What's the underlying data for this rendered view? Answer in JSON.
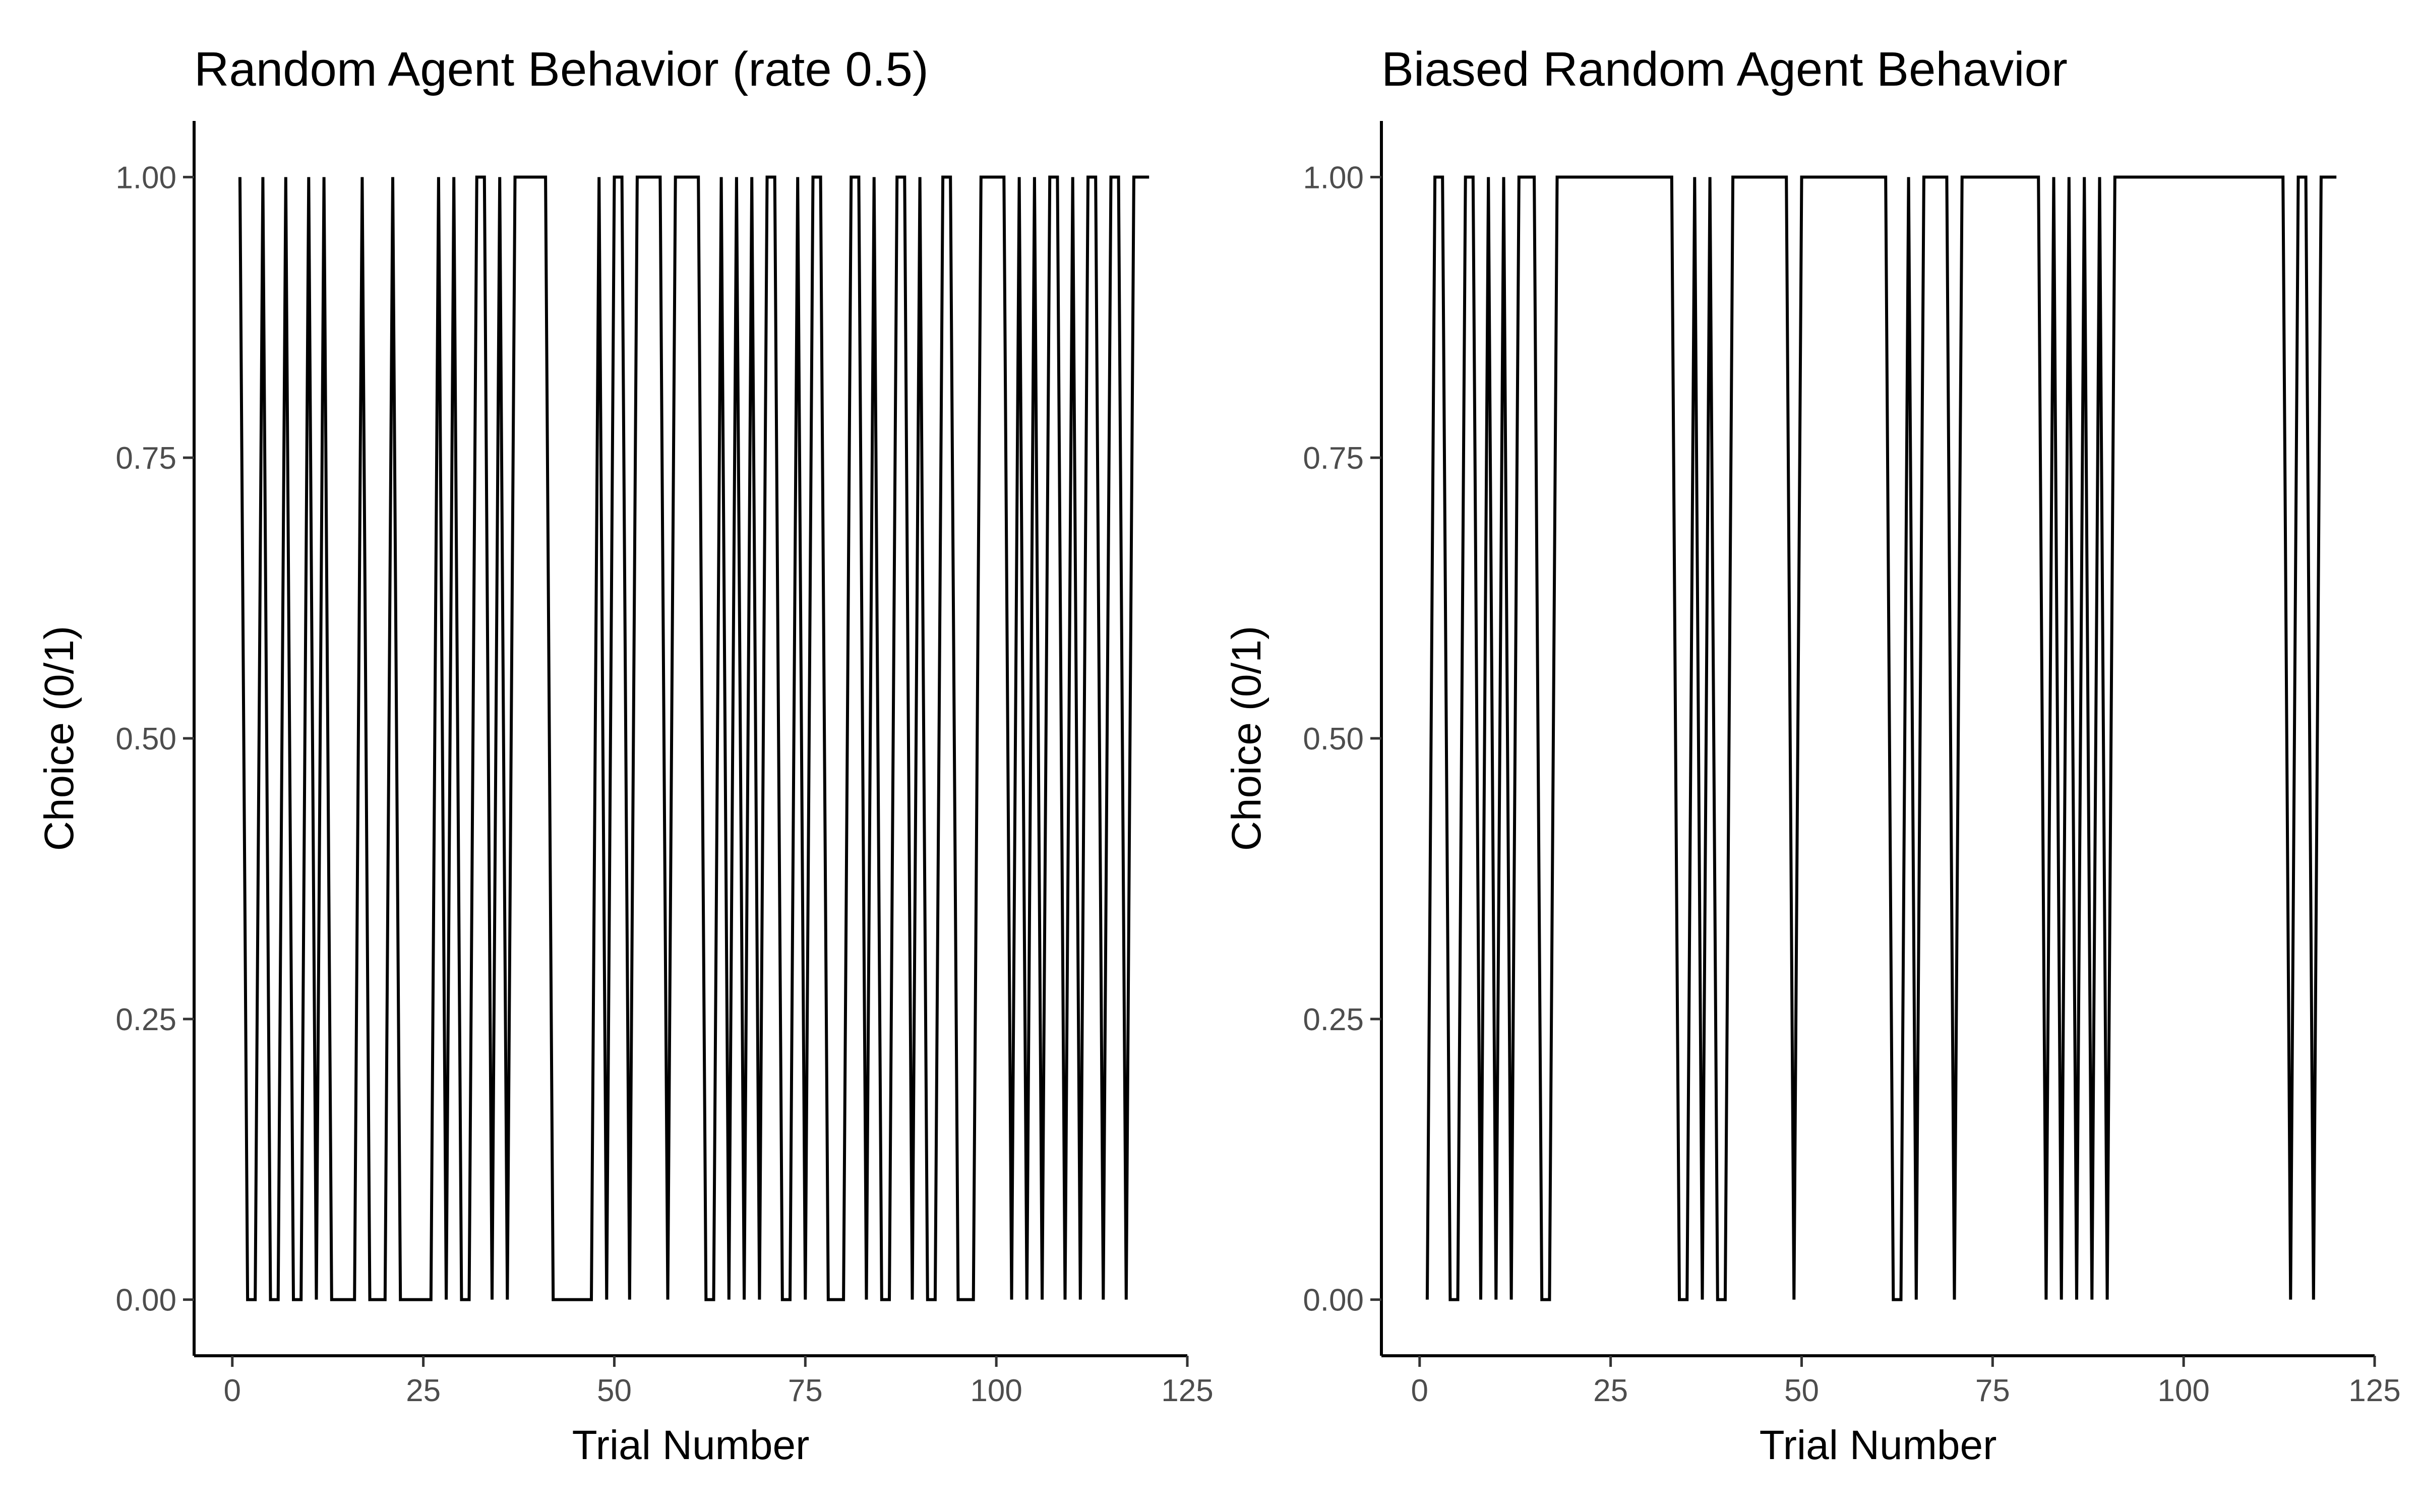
{
  "chart_data": [
    {
      "type": "line",
      "title": "Random Agent Behavior (rate 0.5)",
      "xlabel": "Trial Number",
      "ylabel": "Choice (0/1)",
      "xlim": [
        -5,
        125
      ],
      "ylim": [
        -0.05,
        1.05
      ],
      "xticks": [
        0,
        25,
        50,
        75,
        100,
        125
      ],
      "yticks": [
        0,
        0.25,
        0.5,
        0.75,
        1
      ],
      "xtick_labels": [
        "0",
        "25",
        "50",
        "75",
        "100",
        "125"
      ],
      "ytick_labels": [
        "0.00",
        "0.25",
        "0.50",
        "0.75",
        "1.00"
      ],
      "grid": false,
      "series": [
        {
          "x": [
            1,
            2,
            3,
            4,
            5,
            6,
            7,
            8,
            9,
            10,
            11,
            12,
            13,
            14,
            15,
            16,
            17,
            18,
            19,
            20,
            21,
            22,
            23,
            24,
            25,
            26,
            27,
            28,
            29,
            30,
            31,
            32,
            33,
            34,
            35,
            36,
            37,
            38,
            39,
            40,
            41,
            42,
            43,
            44,
            45,
            46,
            47,
            48,
            49,
            50,
            51,
            52,
            53,
            54,
            55,
            56,
            57,
            58,
            59,
            60,
            61,
            62,
            63,
            64,
            65,
            66,
            67,
            68,
            69,
            70,
            71,
            72,
            73,
            74,
            75,
            76,
            77,
            78,
            79,
            80,
            81,
            82,
            83,
            84,
            85,
            86,
            87,
            88,
            89,
            90,
            91,
            92,
            93,
            94,
            95,
            96,
            97,
            98,
            99,
            100,
            101,
            102,
            103,
            104,
            105,
            106,
            107,
            108,
            109,
            110,
            111,
            112,
            113,
            114,
            115,
            116,
            117,
            118,
            119,
            120
          ],
          "y": [
            1,
            0,
            0,
            1,
            0,
            0,
            1,
            0,
            0,
            1,
            0,
            1,
            0,
            0,
            0,
            0,
            1,
            0,
            0,
            0,
            1,
            0,
            0,
            0,
            0,
            0,
            1,
            0,
            1,
            0,
            0,
            1,
            1,
            0,
            1,
            0,
            1,
            1,
            1,
            1,
            1,
            0,
            0,
            0,
            0,
            0,
            0,
            1,
            0,
            1,
            1,
            0,
            1,
            1,
            1,
            1,
            0,
            1,
            1,
            1,
            1,
            0,
            0,
            1,
            0,
            1,
            0,
            1,
            0,
            1,
            1,
            0,
            0,
            1,
            0,
            1,
            1,
            0,
            0,
            0,
            1,
            1,
            0,
            1,
            0,
            0,
            1,
            1,
            0,
            1,
            0,
            0,
            1,
            1,
            0,
            0,
            0,
            1,
            1,
            1,
            1,
            0,
            1,
            0,
            1,
            0,
            1,
            1,
            0,
            1,
            0,
            1,
            1,
            0,
            1,
            1,
            0,
            1,
            1,
            1
          ]
        }
      ]
    },
    {
      "type": "line",
      "title": "Biased Random Agent Behavior",
      "xlabel": "Trial Number",
      "ylabel": "Choice (0/1)",
      "xlim": [
        -5,
        125
      ],
      "ylim": [
        -0.05,
        1.05
      ],
      "xticks": [
        0,
        25,
        50,
        75,
        100,
        125
      ],
      "yticks": [
        0,
        0.25,
        0.5,
        0.75,
        1
      ],
      "xtick_labels": [
        "0",
        "25",
        "50",
        "75",
        "100",
        "125"
      ],
      "ytick_labels": [
        "0.00",
        "0.25",
        "0.50",
        "0.75",
        "1.00"
      ],
      "grid": false,
      "series": [
        {
          "x": [
            1,
            2,
            3,
            4,
            5,
            6,
            7,
            8,
            9,
            10,
            11,
            12,
            13,
            14,
            15,
            16,
            17,
            18,
            19,
            20,
            21,
            22,
            23,
            24,
            25,
            26,
            27,
            28,
            29,
            30,
            31,
            32,
            33,
            34,
            35,
            36,
            37,
            38,
            39,
            40,
            41,
            42,
            43,
            44,
            45,
            46,
            47,
            48,
            49,
            50,
            51,
            52,
            53,
            54,
            55,
            56,
            57,
            58,
            59,
            60,
            61,
            62,
            63,
            64,
            65,
            66,
            67,
            68,
            69,
            70,
            71,
            72,
            73,
            74,
            75,
            76,
            77,
            78,
            79,
            80,
            81,
            82,
            83,
            84,
            85,
            86,
            87,
            88,
            89,
            90,
            91,
            92,
            93,
            94,
            95,
            96,
            97,
            98,
            99,
            100,
            101,
            102,
            103,
            104,
            105,
            106,
            107,
            108,
            109,
            110,
            111,
            112,
            113,
            114,
            115,
            116,
            117,
            118,
            119,
            120
          ],
          "y": [
            0,
            1,
            1,
            0,
            0,
            1,
            1,
            0,
            1,
            0,
            1,
            0,
            1,
            1,
            1,
            0,
            0,
            1,
            1,
            1,
            1,
            1,
            1,
            1,
            1,
            1,
            1,
            1,
            1,
            1,
            1,
            1,
            1,
            0,
            0,
            1,
            0,
            1,
            0,
            0,
            1,
            1,
            1,
            1,
            1,
            1,
            1,
            1,
            0,
            1,
            1,
            1,
            1,
            1,
            1,
            1,
            1,
            1,
            1,
            1,
            1,
            0,
            0,
            1,
            0,
            1,
            1,
            1,
            1,
            0,
            1,
            1,
            1,
            1,
            1,
            1,
            1,
            1,
            1,
            1,
            1,
            0,
            1,
            0,
            1,
            0,
            1,
            0,
            1,
            0,
            1,
            1,
            1,
            1,
            1,
            1,
            1,
            1,
            1,
            1,
            1,
            1,
            1,
            1,
            1,
            1,
            1,
            1,
            1,
            1,
            1,
            1,
            1,
            0,
            1,
            1,
            0,
            1,
            1,
            1
          ]
        }
      ]
    }
  ]
}
